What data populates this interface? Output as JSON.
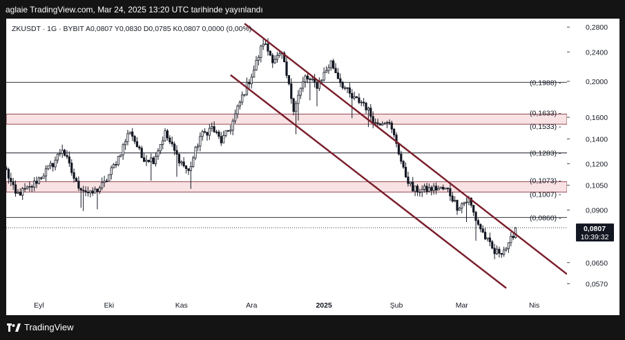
{
  "header": {
    "caption": "aglaie TradingView.com, Mar 24, 2025 13:20 UTC tarihinde yayınlandı"
  },
  "symbol_info": {
    "text": "ZKUSDT · 1G · BYBIT  A0,0807  Y0,0830  D0,0785  K0,0807  0,0000 (0,00%)"
  },
  "footer": {
    "brand": "TradingView"
  },
  "colors": {
    "candle": "#131722",
    "channel": "#7b1f2c",
    "zone_fill": "#f8e2e3",
    "zone_border": "#7b1f2c",
    "level_line": "#131722",
    "price_tag_bg": "#131722"
  },
  "chart_data": {
    "type": "candlestick",
    "scale": "log",
    "y_range": [
      0.0545,
      0.29
    ],
    "y_ticks": [
      {
        "value": 0.28,
        "label": "0,2800"
      },
      {
        "value": 0.24,
        "label": "0,2400"
      },
      {
        "value": 0.2,
        "label": "0,2000"
      },
      {
        "value": 0.16,
        "label": "0,1600"
      },
      {
        "value": 0.14,
        "label": "0,1400"
      },
      {
        "value": 0.12,
        "label": "0,1200"
      },
      {
        "value": 0.105,
        "label": "0,1050"
      },
      {
        "value": 0.09,
        "label": "0,0900"
      },
      {
        "value": 0.065,
        "label": "0,0650"
      },
      {
        "value": 0.057,
        "label": "0,0570"
      }
    ],
    "x_range": [
      "2024-08-18",
      "2025-04-15"
    ],
    "x_ticks": [
      {
        "date": "2024-09-01",
        "label": "Eyl",
        "bold": false
      },
      {
        "date": "2024-10-01",
        "label": "Eki",
        "bold": false
      },
      {
        "date": "2024-11-01",
        "label": "Kas",
        "bold": false
      },
      {
        "date": "2024-12-01",
        "label": "Ara",
        "bold": false
      },
      {
        "date": "2025-01-01",
        "label": "2025",
        "bold": true
      },
      {
        "date": "2025-02-01",
        "label": "Şub",
        "bold": false
      },
      {
        "date": "2025-03-01",
        "label": "Mar",
        "bold": false
      },
      {
        "date": "2025-04-01",
        "label": "Nis",
        "bold": false
      }
    ],
    "levels": [
      {
        "value": 0.1988,
        "label": "(0,1988)"
      },
      {
        "value": 0.1283,
        "label": "(0,1283)"
      },
      {
        "value": 0.086,
        "label": "(0,0860)"
      }
    ],
    "zones": [
      {
        "upper": 0.1633,
        "lower": 0.1533,
        "upper_label": "(0,1633)",
        "lower_label": "(0,1533)"
      },
      {
        "upper": 0.1073,
        "lower": 0.1007,
        "upper_label": "(0,1073)",
        "lower_label": "(0,1007)"
      }
    ],
    "channel": {
      "upper": [
        {
          "date": "2024-11-28",
          "value": 0.286
        },
        {
          "date": "2025-04-15",
          "value": 0.0605
        }
      ],
      "lower": [
        {
          "date": "2024-11-22",
          "value": 0.208
        },
        {
          "date": "2025-03-20",
          "value": 0.0555
        }
      ]
    },
    "current": {
      "value": 0.0807,
      "label": "0,0807",
      "countdown": "10:39:32"
    },
    "anchors": [
      {
        "date": "2024-08-18",
        "value": 0.115
      },
      {
        "date": "2024-08-22",
        "value": 0.099
      },
      {
        "date": "2024-08-28",
        "value": 0.103
      },
      {
        "date": "2024-09-07",
        "value": 0.12
      },
      {
        "date": "2024-09-11",
        "value": 0.132
      },
      {
        "date": "2024-09-17",
        "value": 0.106
      },
      {
        "date": "2024-09-23",
        "value": 0.099
      },
      {
        "date": "2024-09-29",
        "value": 0.106
      },
      {
        "date": "2024-10-05",
        "value": 0.125
      },
      {
        "date": "2024-10-10",
        "value": 0.148
      },
      {
        "date": "2024-10-15",
        "value": 0.125
      },
      {
        "date": "2024-10-20",
        "value": 0.123
      },
      {
        "date": "2024-10-25",
        "value": 0.145
      },
      {
        "date": "2024-10-30",
        "value": 0.126
      },
      {
        "date": "2024-11-04",
        "value": 0.114
      },
      {
        "date": "2024-11-09",
        "value": 0.142
      },
      {
        "date": "2024-11-14",
        "value": 0.15
      },
      {
        "date": "2024-11-18",
        "value": 0.138
      },
      {
        "date": "2024-11-22",
        "value": 0.15
      },
      {
        "date": "2024-11-27",
        "value": 0.182
      },
      {
        "date": "2024-12-02",
        "value": 0.215
      },
      {
        "date": "2024-12-06",
        "value": 0.255
      },
      {
        "date": "2024-12-10",
        "value": 0.23
      },
      {
        "date": "2024-12-14",
        "value": 0.235
      },
      {
        "date": "2024-12-19",
        "value": 0.17
      },
      {
        "date": "2024-12-24",
        "value": 0.205
      },
      {
        "date": "2024-12-29",
        "value": 0.195
      },
      {
        "date": "2025-01-04",
        "value": 0.225
      },
      {
        "date": "2025-01-08",
        "value": 0.2
      },
      {
        "date": "2025-01-13",
        "value": 0.18
      },
      {
        "date": "2025-01-18",
        "value": 0.175
      },
      {
        "date": "2025-01-23",
        "value": 0.154
      },
      {
        "date": "2025-01-28",
        "value": 0.158
      },
      {
        "date": "2025-02-01",
        "value": 0.137
      },
      {
        "date": "2025-02-04",
        "value": 0.115
      },
      {
        "date": "2025-02-08",
        "value": 0.102
      },
      {
        "date": "2025-02-13",
        "value": 0.102
      },
      {
        "date": "2025-02-18",
        "value": 0.103
      },
      {
        "date": "2025-02-23",
        "value": 0.102
      },
      {
        "date": "2025-02-27",
        "value": 0.092
      },
      {
        "date": "2025-03-04",
        "value": 0.096
      },
      {
        "date": "2025-03-07",
        "value": 0.085
      },
      {
        "date": "2025-03-11",
        "value": 0.076
      },
      {
        "date": "2025-03-15",
        "value": 0.069
      },
      {
        "date": "2025-03-18",
        "value": 0.07
      },
      {
        "date": "2025-03-21",
        "value": 0.072
      },
      {
        "date": "2025-03-24",
        "value": 0.0807
      }
    ]
  }
}
